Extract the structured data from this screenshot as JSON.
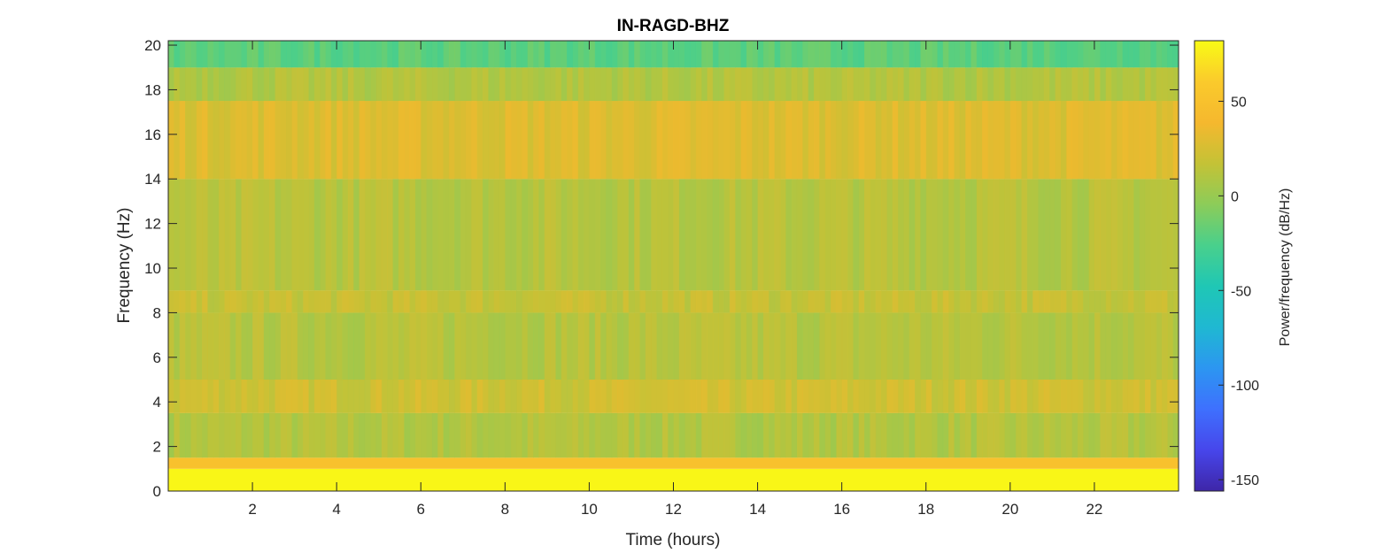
{
  "chart_data": {
    "type": "heatmap",
    "title": "IN-RAGD-BHZ",
    "xlabel": "Time (hours)",
    "ylabel": "Frequency (Hz)",
    "xlim": [
      0,
      24
    ],
    "ylim": [
      0,
      20.2
    ],
    "x_ticks": [
      2,
      4,
      6,
      8,
      10,
      12,
      14,
      16,
      18,
      20,
      22
    ],
    "y_ticks": [
      0,
      2,
      4,
      6,
      8,
      10,
      12,
      14,
      16,
      18,
      20
    ],
    "colorbar": {
      "label": "Power/frequency (dB/Hz)",
      "range": [
        -156,
        82
      ],
      "ticks": [
        50,
        0,
        -50,
        -100,
        -150
      ],
      "colormap": "parula",
      "colormap_stops": [
        "#3e26a8",
        "#4746eb",
        "#3e70fe",
        "#2c96f1",
        "#1fb8d2",
        "#1fc7b5",
        "#49d08c",
        "#8ccc59",
        "#c4c236",
        "#f5b82e",
        "#faca2c",
        "#f9fb15"
      ]
    },
    "band_levels_db": [
      {
        "f_from": 0,
        "f_to": 1.0,
        "db": 80
      },
      {
        "f_from": 1.0,
        "f_to": 1.5,
        "db": 50
      },
      {
        "f_from": 1.5,
        "f_to": 3.5,
        "db": 10
      },
      {
        "f_from": 3.5,
        "f_to": 5.0,
        "db": 22
      },
      {
        "f_from": 5.0,
        "f_to": 8.0,
        "db": 12
      },
      {
        "f_from": 8.0,
        "f_to": 9.0,
        "db": 18
      },
      {
        "f_from": 9.0,
        "f_to": 14.0,
        "db": 12
      },
      {
        "f_from": 14.0,
        "f_to": 17.5,
        "db": 28
      },
      {
        "f_from": 17.5,
        "f_to": 19.0,
        "db": 10
      },
      {
        "f_from": 19.0,
        "f_to": 20.2,
        "db": -20
      }
    ]
  }
}
